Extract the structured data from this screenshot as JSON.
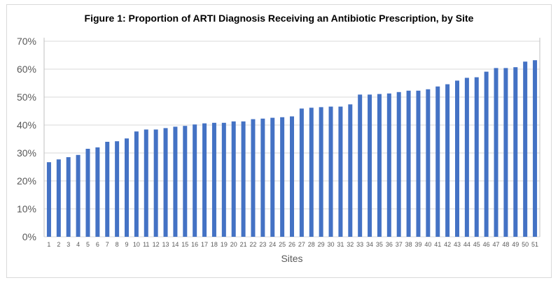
{
  "chart_data": {
    "type": "bar",
    "title": "Figure 1: Proportion of ARTI Diagnosis Receiving an Antibiotic Prescription, by Site",
    "xlabel": "Sites",
    "ylabel": "",
    "ylim": [
      0,
      70
    ],
    "yticks": [
      "0%",
      "10%",
      "20%",
      "30%",
      "40%",
      "50%",
      "60%",
      "70%"
    ],
    "grid": true,
    "bar_color": "#4472c4",
    "categories": [
      "1",
      "2",
      "3",
      "4",
      "5",
      "6",
      "7",
      "8",
      "9",
      "10",
      "11",
      "12",
      "13",
      "14",
      "15",
      "16",
      "17",
      "18",
      "19",
      "20",
      "21",
      "22",
      "23",
      "24",
      "25",
      "26",
      "27",
      "28",
      "29",
      "30",
      "31",
      "32",
      "33",
      "34",
      "35",
      "36",
      "37",
      "38",
      "39",
      "40",
      "41",
      "42",
      "43",
      "44",
      "45",
      "46",
      "47",
      "48",
      "49",
      "50",
      "51"
    ],
    "values": [
      26.7,
      27.7,
      28.5,
      29.3,
      31.5,
      32.0,
      34.0,
      34.2,
      35.2,
      37.7,
      38.4,
      38.4,
      38.9,
      39.4,
      39.7,
      40.2,
      40.6,
      40.8,
      40.8,
      41.3,
      41.3,
      42.1,
      42.3,
      42.6,
      42.8,
      43.1,
      45.9,
      46.2,
      46.4,
      46.6,
      46.6,
      47.4,
      50.9,
      50.9,
      51.1,
      51.3,
      51.8,
      52.3,
      52.3,
      52.8,
      53.8,
      54.6,
      55.9,
      56.9,
      57.1,
      59.1,
      60.4,
      60.4,
      60.7,
      62.7,
      63.2
    ]
  }
}
